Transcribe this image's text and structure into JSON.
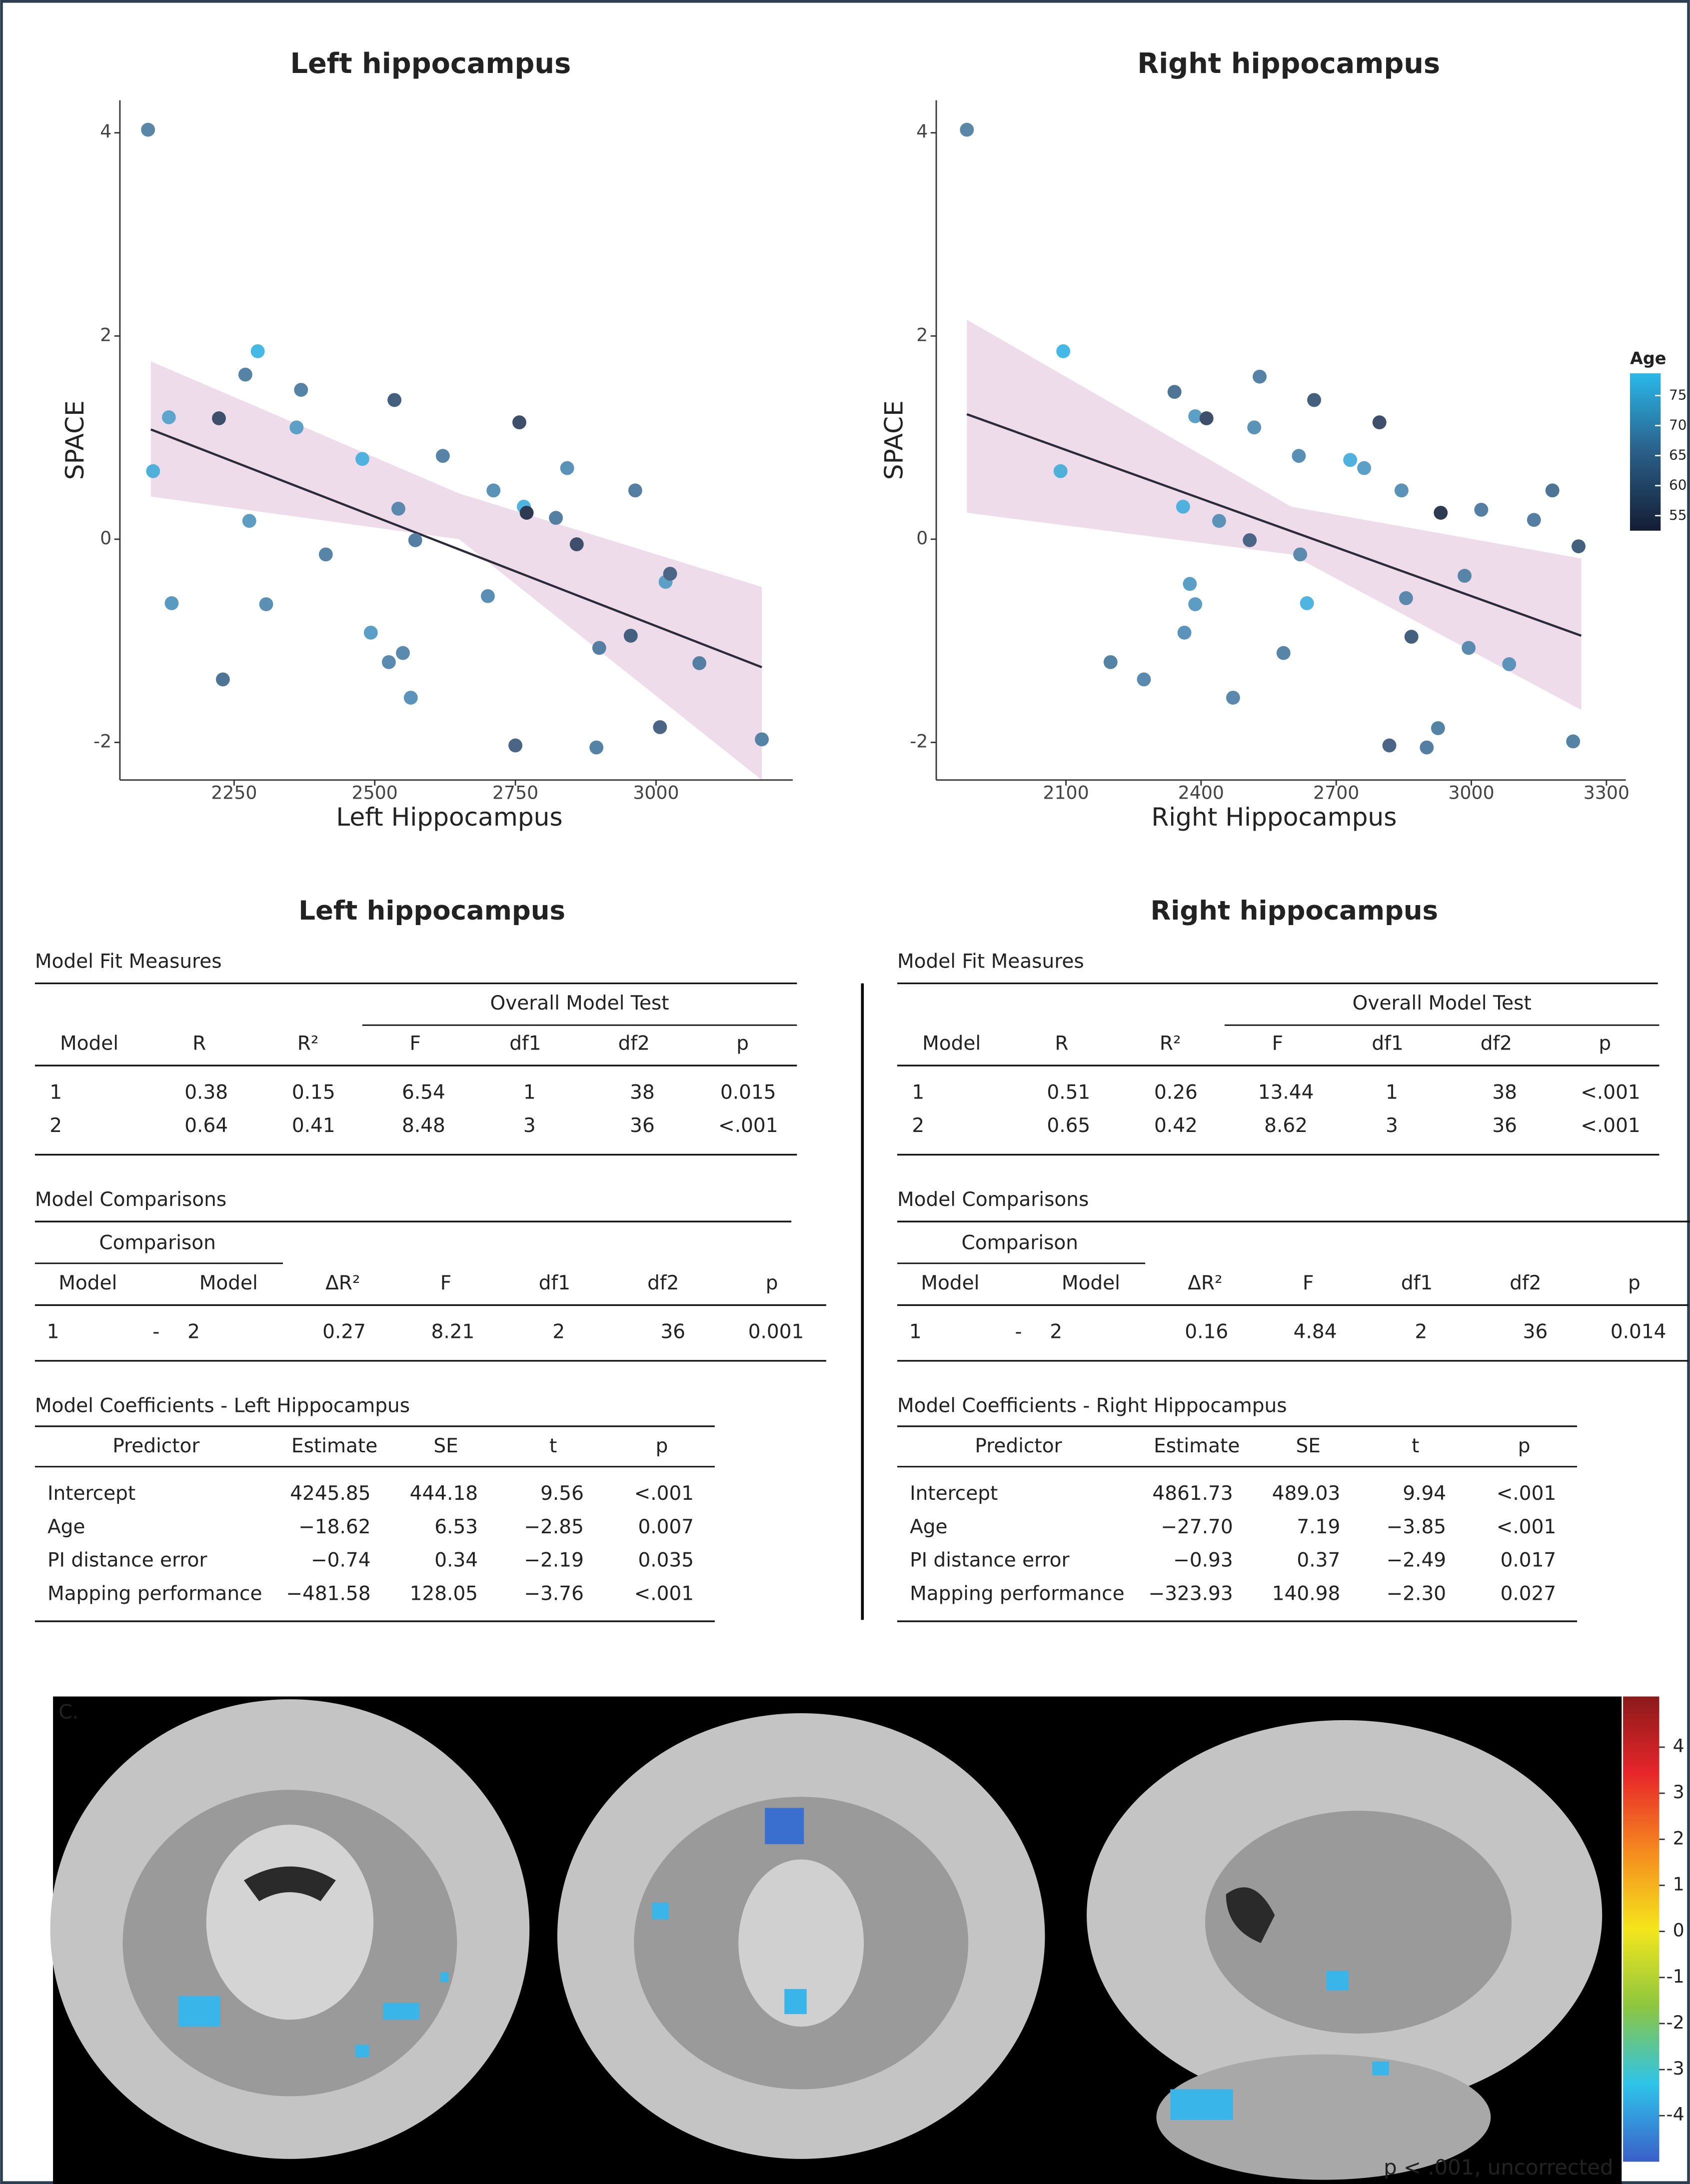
{
  "chart_data": [
    {
      "type": "scatter",
      "title": "Left hippocampus",
      "x_label": "Left Hippocampus",
      "y_label": "SPACE",
      "xlim": [
        2047,
        3243
      ],
      "ylim": [
        -2.37,
        4.32
      ],
      "xticks": [
        2250,
        2500,
        2750,
        3000
      ],
      "yticks": [
        -2,
        0,
        2,
        4
      ],
      "series": [
        {
          "x": [
            2097,
            2106,
            2134,
            2139,
            2223,
            2230,
            2270,
            2277,
            2292,
            2307,
            2361,
            2369,
            2413,
            2478,
            2493,
            2525,
            2535,
            2542,
            2550,
            2564,
            2572,
            2621,
            2701,
            2711,
            2750,
            2757,
            2765,
            2770,
            2822,
            2842,
            2859,
            2894,
            2899,
            2955,
            2963,
            3007,
            3017,
            3025,
            3077,
            3188
          ],
          "values": [
            4.03,
            0.67,
            1.2,
            -0.63,
            1.19,
            -1.38,
            1.62,
            0.18,
            1.85,
            -0.64,
            1.1,
            1.47,
            -0.15,
            0.79,
            -0.92,
            -1.21,
            1.37,
            0.3,
            -1.12,
            -1.56,
            -0.01,
            0.82,
            -0.56,
            0.48,
            -2.03,
            1.15,
            0.32,
            0.26,
            0.21,
            0.7,
            -0.05,
            -2.05,
            -1.07,
            -0.95,
            0.48,
            -1.85,
            -0.42,
            -0.34,
            -1.22,
            -1.97
          ],
          "colors": [
            "#5a86a8",
            "#4fb0da",
            "#5da5cc",
            "#5a9ac0",
            "#3d4f6a",
            "#4e7596",
            "#5583a5",
            "#5d9dc3",
            "#45b8e6",
            "#5b8fb3",
            "#5ca0c8",
            "#5583a5",
            "#5785a8",
            "#4fb2de",
            "#5b9ec6",
            "#5a8ab0",
            "#44607f",
            "#5a89ad",
            "#5a8aae",
            "#5b93ba",
            "#557fa2",
            "#5783a6",
            "#5a8fb5",
            "#5b93b8",
            "#4a6585",
            "#3d4f6a",
            "#4fb5e0",
            "#2e3a52",
            "#557fa2",
            "#5b93b8",
            "#3d4f6a",
            "#5583a5",
            "#557fa2",
            "#44607f",
            "#557fa2",
            "#4a6585",
            "#5ca0c8",
            "#4a6585",
            "#557fa2",
            "#5583a5"
          ]
        }
      ],
      "fit": {
        "x": [
          2102,
          3188
        ],
        "y": [
          1.08,
          -1.26
        ],
        "color": "#2b2b3a"
      },
      "band": {
        "x": [
          2102,
          2650,
          3188
        ],
        "lower": [
          0.42,
          0.0,
          -2.37
        ],
        "upper": [
          1.75,
          0.45,
          -0.47
        ],
        "color": "#efdcea"
      }
    },
    {
      "type": "scatter",
      "title": "Right hippocampus",
      "x_label": "Right Hippocampus",
      "y_label": "SPACE",
      "xlim": [
        1812,
        3343
      ],
      "ylim": [
        -2.37,
        4.32
      ],
      "xticks": [
        2100,
        2400,
        2700,
        3000,
        3300
      ],
      "yticks": [
        -2,
        0,
        2,
        4
      ],
      "series": [
        {
          "x": [
            1880,
            2094,
            2088,
            2199,
            2273,
            2341,
            2360,
            2363,
            2375,
            2387,
            2387,
            2412,
            2440,
            2471,
            2508,
            2518,
            2530,
            2583,
            2617,
            2620,
            2635,
            2651,
            2731,
            2762,
            2796,
            2818,
            2845,
            2855,
            2867,
            2901,
            2926,
            2932,
            2985,
            2994,
            3022,
            3084,
            3139,
            3180,
            3226,
            3238
          ],
          "values": [
            4.03,
            1.85,
            0.67,
            -1.21,
            -1.38,
            1.45,
            0.32,
            -0.92,
            -0.44,
            1.21,
            -0.64,
            1.19,
            0.18,
            -1.56,
            -0.01,
            1.1,
            1.6,
            -1.12,
            0.82,
            -0.15,
            -0.63,
            1.37,
            0.78,
            0.7,
            1.15,
            -2.03,
            0.48,
            -0.58,
            -0.96,
            -2.05,
            -1.86,
            0.26,
            -0.36,
            -1.07,
            0.29,
            -1.23,
            0.19,
            0.48,
            -1.99,
            -0.07
          ],
          "colors": [
            "#5a86a8",
            "#45b8e6",
            "#4fb0da",
            "#5583a5",
            "#5a8ab0",
            "#4e7596",
            "#4fb2de",
            "#5b93ba",
            "#5b9ec6",
            "#5ca0c8",
            "#5d9dc3",
            "#3d4f6a",
            "#5b93b8",
            "#5a89ad",
            "#4a6585",
            "#5b93b8",
            "#5583a5",
            "#5785a8",
            "#5a8fb5",
            "#5a8aae",
            "#4fb5e0",
            "#44607f",
            "#4fb2de",
            "#5ca0c8",
            "#3d4f6a",
            "#4a6585",
            "#5b93b8",
            "#5a89ad",
            "#44607f",
            "#557fa2",
            "#5583a5",
            "#2e3a52",
            "#5785a8",
            "#5a8aae",
            "#557fa2",
            "#5b93ba",
            "#557fa2",
            "#4e7596",
            "#5583a5",
            "#44607f"
          ]
        }
      ],
      "fit": {
        "x": [
          1880,
          3244
        ],
        "y": [
          1.23,
          -0.95
        ],
        "color": "#2b2b3a"
      },
      "band": {
        "x": [
          1880,
          2600,
          3244
        ],
        "lower": [
          0.26,
          -0.15,
          -1.68
        ],
        "upper": [
          2.16,
          0.32,
          -0.19
        ],
        "color": "#efdcea"
      },
      "colorbar": {
        "title": "Age",
        "lim": [
          52.5,
          78.7
        ],
        "ticks": [
          55,
          60,
          65,
          70,
          75
        ],
        "colors": [
          "#141d33",
          "#2a5f88",
          "#2ab8ea"
        ]
      }
    }
  ],
  "tables": [
    {
      "title": "Left hippocampus",
      "model_fit": {
        "title": "Model Fit Measures",
        "group": "Overall Model Test",
        "columns": [
          "Model",
          "R",
          "R²",
          "F",
          "df1",
          "df2",
          "p"
        ],
        "rows": [
          [
            "1",
            "0.38",
            "0.15",
            "6.54",
            "1",
            "38",
            "0.015"
          ],
          [
            "2",
            "0.64",
            "0.41",
            "8.48",
            "3",
            "36",
            "<.001"
          ]
        ]
      },
      "comparisons": {
        "title": "Model Comparisons",
        "group": "Comparison",
        "columns": [
          "Model",
          "Model",
          "ΔR²",
          "F",
          "df1",
          "df2",
          "p"
        ],
        "rows": [
          [
            "1",
            "-",
            "2",
            "0.27",
            "8.21",
            "2",
            "36",
            "0.001"
          ]
        ]
      },
      "coefficients": {
        "title": "Model Coefficients - Left Hippocampus",
        "columns": [
          "Predictor",
          "Estimate",
          "SE",
          "t",
          "p"
        ],
        "rows": [
          [
            "Intercept",
            "4245.85",
            "444.18",
            "9.56",
            "<.001"
          ],
          [
            "Age",
            "−18.62",
            "6.53",
            "−2.85",
            "0.007"
          ],
          [
            "PI distance error",
            "−0.74",
            "0.34",
            "−2.19",
            "0.035"
          ],
          [
            "Mapping performance",
            "−481.58",
            "128.05",
            "−3.76",
            "<.001"
          ]
        ]
      }
    },
    {
      "title": "Right hippocampus",
      "model_fit": {
        "title": "Model Fit Measures",
        "group": "Overall Model Test",
        "columns": [
          "Model",
          "R",
          "R²",
          "F",
          "df1",
          "df2",
          "p"
        ],
        "rows": [
          [
            "1",
            "0.51",
            "0.26",
            "13.44",
            "1",
            "38",
            "<.001"
          ],
          [
            "2",
            "0.65",
            "0.42",
            "8.62",
            "3",
            "36",
            "<.001"
          ]
        ]
      },
      "comparisons": {
        "title": "Model Comparisons",
        "group": "Comparison",
        "columns": [
          "Model",
          "Model",
          "ΔR²",
          "F",
          "df1",
          "df2",
          "p"
        ],
        "rows": [
          [
            "1",
            "-",
            "2",
            "0.16",
            "4.84",
            "2",
            "36",
            "0.014"
          ]
        ]
      },
      "coefficients": {
        "title": "Model Coefficients - Right Hippocampus",
        "columns": [
          "Predictor",
          "Estimate",
          "SE",
          "t",
          "p"
        ],
        "rows": [
          [
            "Intercept",
            "4861.73",
            "489.03",
            "9.94",
            "<.001"
          ],
          [
            "Age",
            "−27.70",
            "7.19",
            "−3.85",
            "<.001"
          ],
          [
            "PI distance error",
            "−0.93",
            "0.37",
            "−2.49",
            "0.017"
          ],
          [
            "Mapping performance",
            "−323.93",
            "140.98",
            "−2.30",
            "0.027"
          ]
        ]
      }
    }
  ],
  "brain_figure": {
    "panel_label": "C.",
    "caption": "p < .001, uncorrected",
    "colorbar": {
      "lim": [
        -5,
        5.1
      ],
      "ticks": [
        4,
        3,
        2,
        1,
        0,
        -1,
        -2,
        -3,
        -4
      ],
      "colors": [
        "#8b1a1a",
        "#e8262a",
        "#f58a1f",
        "#f5e61c",
        "#8cc63f",
        "#2ec4ea",
        "#3a5fc8"
      ]
    }
  }
}
